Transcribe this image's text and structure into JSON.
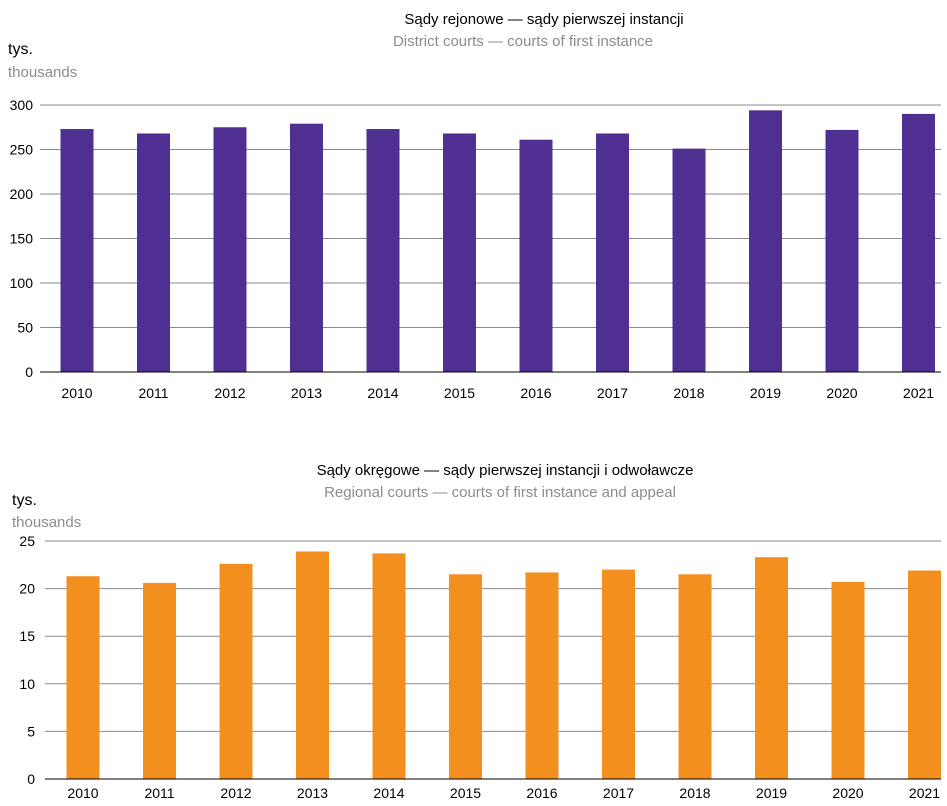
{
  "chart_data": [
    {
      "type": "bar",
      "title": "Sądy  rejonowe — sądy pierwszej instancji",
      "subtitle": "District  courts — courts of first instance",
      "ylabel": "tys.",
      "ylabel_en": "thousands",
      "categories": [
        "2010",
        "2011",
        "2012",
        "2013",
        "2014",
        "2015",
        "2016",
        "2017",
        "2018",
        "2019",
        "2020",
        "2021"
      ],
      "values": [
        273,
        268,
        275,
        279,
        273,
        268,
        261,
        268,
        251,
        294,
        272,
        290
      ],
      "yticks": [
        "0",
        "50",
        "100",
        "150",
        "200",
        "250",
        "300"
      ],
      "ylim": [
        0,
        300
      ],
      "grid": true,
      "color": "#4f2f91"
    },
    {
      "type": "bar",
      "title": "Sądy  okręgowe — sądy pierwszej instancji i odwoławcze",
      "subtitle": "Regional  courts — courts of first instance and appeal",
      "ylabel": "tys.",
      "ylabel_en": "thousands",
      "categories": [
        "2010",
        "2011",
        "2012",
        "2013",
        "2014",
        "2015",
        "2016",
        "2017",
        "2018",
        "2019",
        "2020",
        "2021"
      ],
      "values": [
        21.3,
        20.6,
        22.6,
        23.9,
        23.7,
        21.5,
        21.7,
        22.0,
        21.5,
        23.3,
        20.7,
        21.9
      ],
      "yticks": [
        "0",
        "5",
        "10",
        "15",
        "20",
        "25"
      ],
      "ylim": [
        0,
        25
      ],
      "grid": true,
      "color": "#f38f1f"
    }
  ]
}
